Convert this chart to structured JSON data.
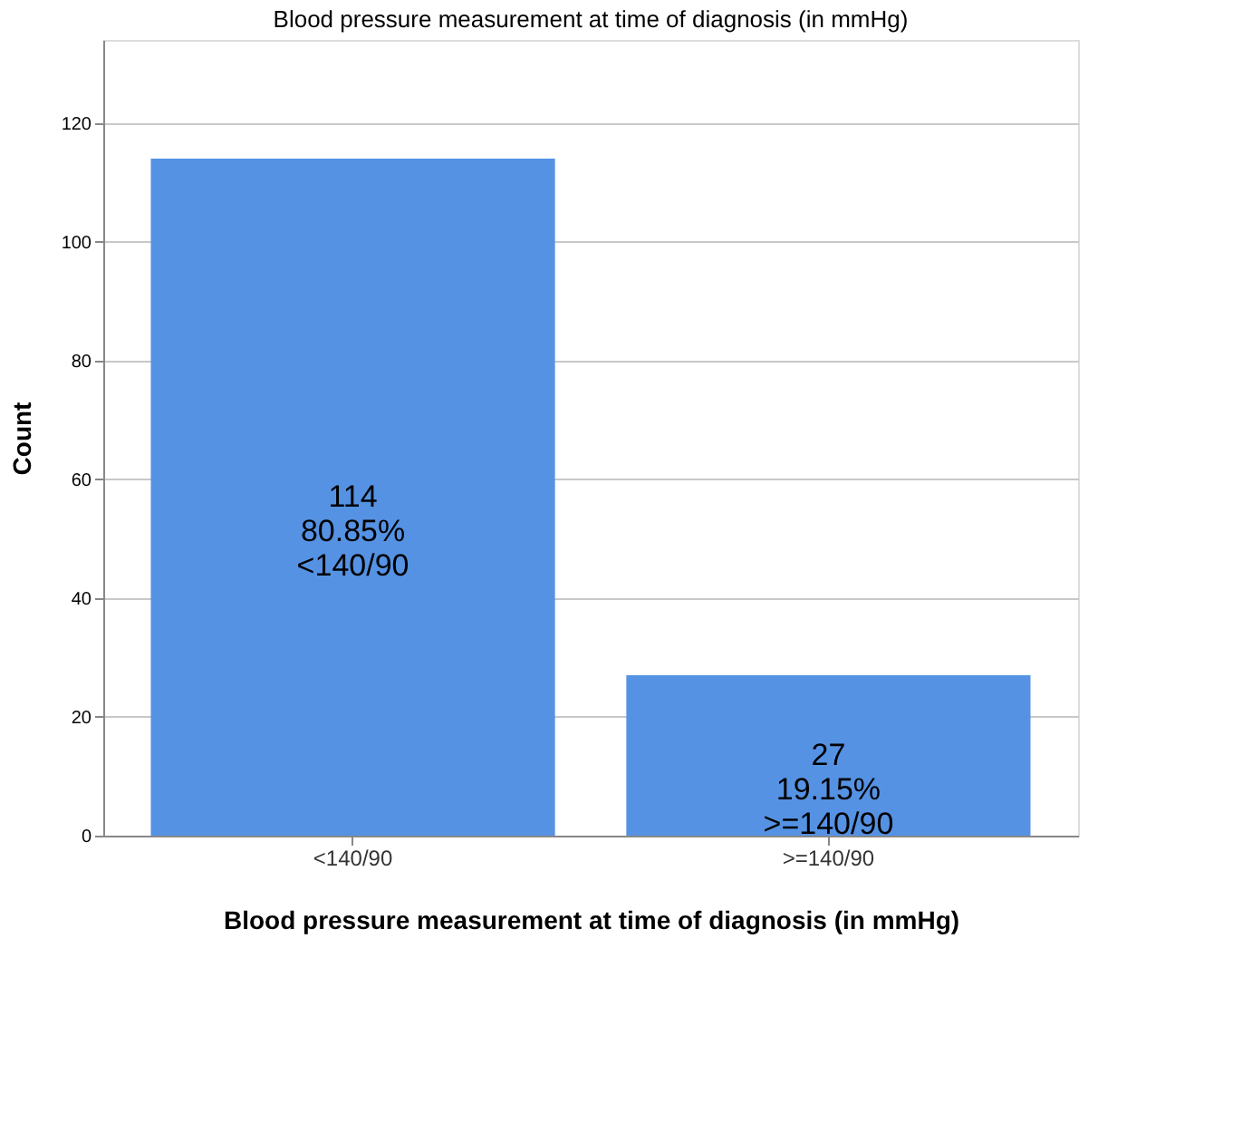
{
  "chart_data": {
    "type": "bar",
    "title": "Blood pressure measurement at time of diagnosis (in mmHg)",
    "xlabel": "Blood pressure measurement at time of diagnosis (in mmHg)",
    "ylabel": "Count",
    "categories": [
      "<140/90",
      ">=140/90"
    ],
    "values": [
      114,
      27
    ],
    "color": "#5592e3",
    "value_labels": [
      "114\n80.85%\n<140/90",
      "27\n19.15%\n>=140/90"
    ],
    "ylim": [
      0,
      134
    ],
    "yticks": [
      0,
      20,
      40,
      60,
      80,
      100,
      120
    ],
    "grid": "y"
  }
}
